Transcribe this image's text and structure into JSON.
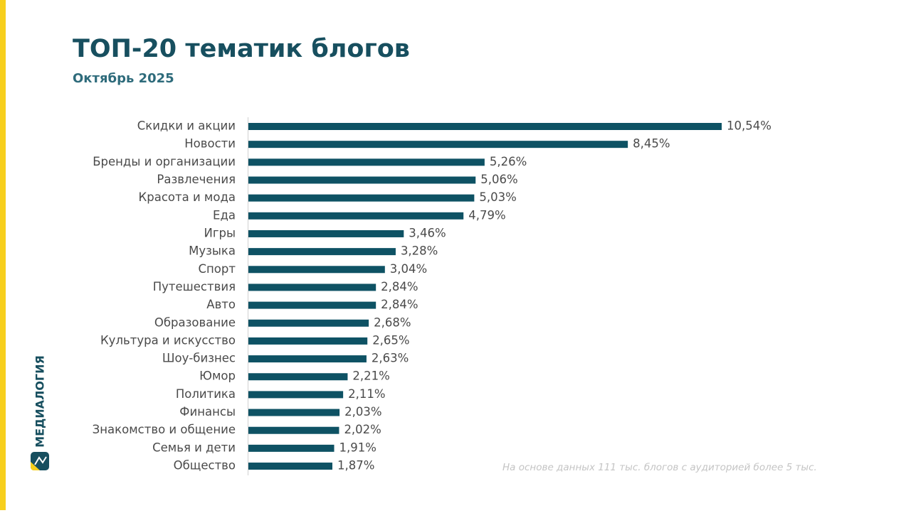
{
  "brand": "МЕДИАЛОГИЯ",
  "chart_data": {
    "type": "bar",
    "orientation": "horizontal",
    "title": "ТОП-20 тематик блогов",
    "subtitle": "Октябрь 2025",
    "note": "На основе данных 111 тыс. блогов с аудиторией более 5 тыс.",
    "color": "#0e5264",
    "categories": [
      "Скидки и акции",
      "Новости",
      "Бренды и организации",
      "Развлечения",
      "Красота и мода",
      "Еда",
      "Игры",
      "Музыка",
      "Спорт",
      "Путешествия",
      "Авто",
      "Образование",
      "Культура и искусство",
      "Шоу-бизнес",
      "Юмор",
      "Политика",
      "Финансы",
      "Знакомство и общение",
      "Семья и дети",
      "Общество"
    ],
    "values": [
      10.54,
      8.45,
      5.26,
      5.06,
      5.03,
      4.79,
      3.46,
      3.28,
      3.04,
      2.84,
      2.84,
      2.68,
      2.65,
      2.63,
      2.21,
      2.11,
      2.03,
      2.02,
      1.91,
      1.87
    ],
    "value_labels": [
      "10,54%",
      "8,45%",
      "5,26%",
      "5,06%",
      "5,03%",
      "4,79%",
      "3,46%",
      "3,28%",
      "3,04%",
      "2,84%",
      "2,84%",
      "2,68%",
      "2,65%",
      "2,63%",
      "2,21%",
      "2,11%",
      "2,03%",
      "2,02%",
      "1,91%",
      "1,87%"
    ]
  }
}
